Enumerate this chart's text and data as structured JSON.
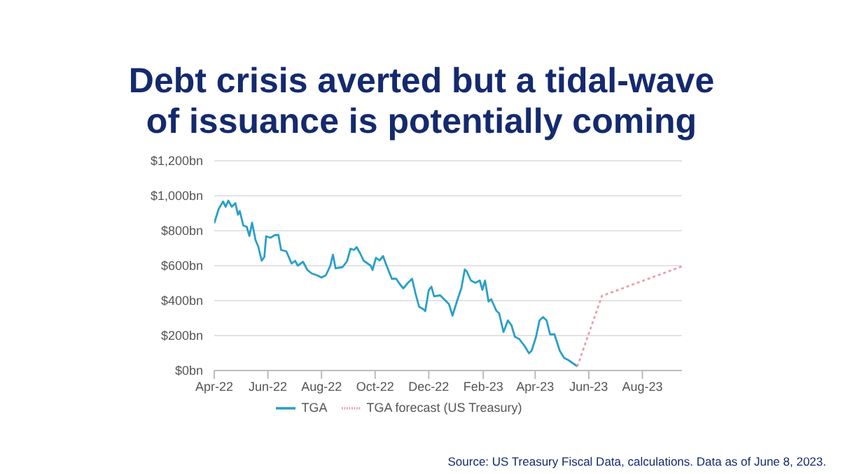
{
  "chart_data": {
    "type": "line",
    "title": "Debt crisis averted but a tidal-wave\nof issuance is potentially coming",
    "annotations": [
      "Source: US Treasury Fiscal Data, calculations. Data as of June 8, 2023."
    ],
    "xlim": [
      "2022-04-01",
      "2023-09-15"
    ],
    "xticks": [
      {
        "value": "2022-04-01",
        "label": "Apr-22"
      },
      {
        "value": "2022-06-01",
        "label": "Jun-22"
      },
      {
        "value": "2022-08-01",
        "label": "Aug-22"
      },
      {
        "value": "2022-10-01",
        "label": "Oct-22"
      },
      {
        "value": "2022-12-01",
        "label": "Dec-22"
      },
      {
        "value": "2023-02-01",
        "label": "Feb-23"
      },
      {
        "value": "2023-04-01",
        "label": "Apr-23"
      },
      {
        "value": "2023-06-01",
        "label": "Jun-23"
      },
      {
        "value": "2023-08-01",
        "label": "Aug-23"
      }
    ],
    "ylim": [
      0,
      1200
    ],
    "yticks": [
      {
        "value": 0,
        "label": "$0bn"
      },
      {
        "value": 200,
        "label": "$200bn"
      },
      {
        "value": 400,
        "label": "$400bn"
      },
      {
        "value": 600,
        "label": "$600bn"
      },
      {
        "value": 800,
        "label": "$800bn"
      },
      {
        "value": 1000,
        "label": "$1,000bn"
      },
      {
        "value": 1200,
        "label": "$1,200bn"
      }
    ],
    "grid": "y",
    "legend": "bottom",
    "marker": "none",
    "series": [
      {
        "name": "TGA",
        "color": "#2a9fc9",
        "line_style": "solid",
        "x": [
          "2022-04-01",
          "2022-04-06",
          "2022-04-11",
          "2022-04-14",
          "2022-04-17",
          "2022-04-21",
          "2022-04-25",
          "2022-04-28",
          "2022-04-30",
          "2022-05-04",
          "2022-05-08",
          "2022-05-11",
          "2022-05-14",
          "2022-05-18",
          "2022-05-21",
          "2022-05-25",
          "2022-05-28",
          "2022-05-30",
          "2022-06-04",
          "2022-06-09",
          "2022-06-13",
          "2022-06-16",
          "2022-06-22",
          "2022-06-28",
          "2022-07-02",
          "2022-07-05",
          "2022-07-11",
          "2022-07-16",
          "2022-07-21",
          "2022-07-27",
          "2022-08-01",
          "2022-08-06",
          "2022-08-11",
          "2022-08-14",
          "2022-08-17",
          "2022-08-25",
          "2022-08-30",
          "2022-09-03",
          "2022-09-07",
          "2022-09-10",
          "2022-09-14",
          "2022-09-18",
          "2022-09-26",
          "2022-09-28",
          "2022-10-02",
          "2022-10-06",
          "2022-10-10",
          "2022-10-14",
          "2022-10-20",
          "2022-10-25",
          "2022-10-29",
          "2022-11-02",
          "2022-11-07",
          "2022-11-12",
          "2022-11-16",
          "2022-11-20",
          "2022-11-25",
          "2022-11-27",
          "2022-12-01",
          "2022-12-04",
          "2022-12-07",
          "2022-12-14",
          "2022-12-20",
          "2022-12-24",
          "2022-12-28",
          "2023-01-02",
          "2023-01-07",
          "2023-01-11",
          "2023-01-13",
          "2023-01-18",
          "2023-01-23",
          "2023-01-28",
          "2023-01-31",
          "2023-02-03",
          "2023-02-07",
          "2023-02-10",
          "2023-02-16",
          "2023-02-19",
          "2023-02-24",
          "2023-03-01",
          "2023-03-05",
          "2023-03-09",
          "2023-03-14",
          "2023-03-20",
          "2023-03-25",
          "2023-03-28",
          "2023-04-02",
          "2023-04-06",
          "2023-04-10",
          "2023-04-14",
          "2023-04-18",
          "2023-04-23",
          "2023-04-29",
          "2023-05-04",
          "2023-05-09",
          "2023-05-15",
          "2023-05-19"
        ],
        "values": [
          843,
          924,
          967,
          937,
          972,
          937,
          958,
          891,
          913,
          830,
          822,
          770,
          846,
          746,
          710,
          628,
          650,
          768,
          760,
          775,
          776,
          690,
          682,
          612,
          628,
          600,
          622,
          575,
          555,
          545,
          532,
          545,
          600,
          663,
          585,
          592,
          625,
          697,
          690,
          706,
          670,
          628,
          600,
          575,
          645,
          630,
          655,
          600,
          525,
          525,
          495,
          470,
          500,
          525,
          440,
          365,
          350,
          340,
          460,
          480,
          425,
          430,
          400,
          380,
          314,
          395,
          470,
          578,
          569,
          515,
          502,
          515,
          462,
          515,
          395,
          408,
          341,
          328,
          220,
          287,
          260,
          193,
          180,
          140,
          99,
          113,
          193,
          287,
          306,
          287,
          207,
          207,
          113,
          72,
          59,
          38,
          24
        ]
      },
      {
        "name": "TGA forecast (US Treasury)",
        "color": "#e8a0a8",
        "line_style": "dotted",
        "x": [
          "2023-05-19",
          "2023-06-16",
          "2023-09-15"
        ],
        "values": [
          24,
          427,
          596
        ]
      }
    ]
  }
}
